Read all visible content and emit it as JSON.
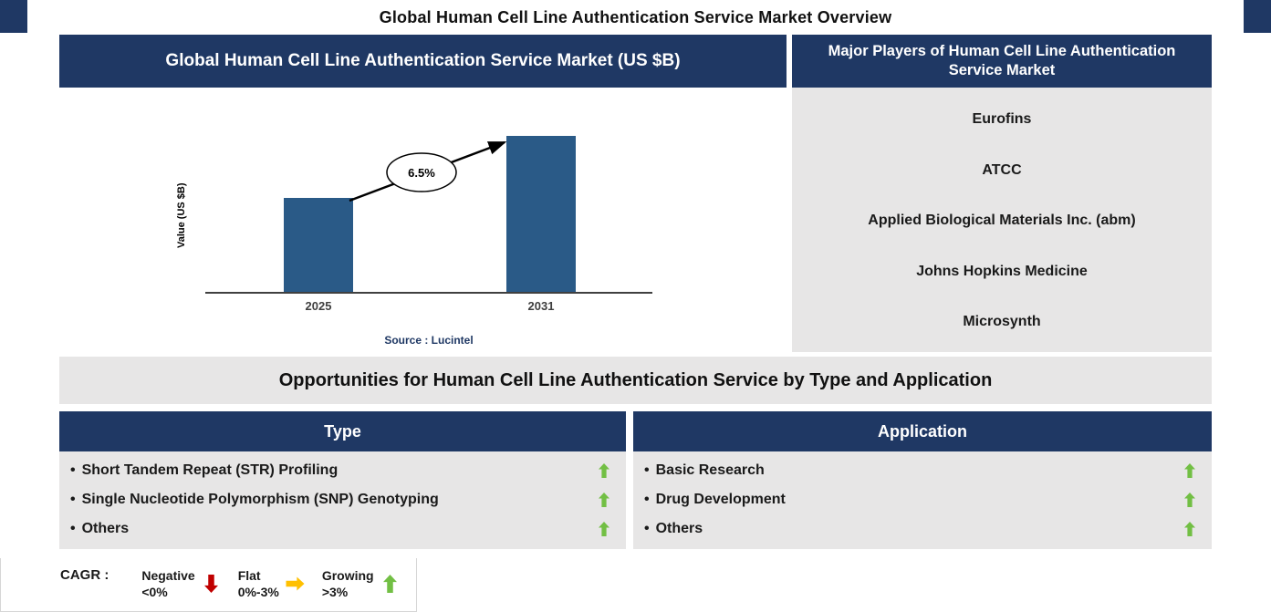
{
  "page_title": "Global Human Cell Line Authentication Service Market Overview",
  "colors": {
    "navy": "#1f3864",
    "bar": "#2a5a87",
    "panel_gray": "#e7e6e6",
    "arrow_green": "#72bf44",
    "arrow_red": "#c00000",
    "arrow_yellow": "#ffc000",
    "text_dark": "#1a1a1a"
  },
  "market_panel": {
    "title": "Global Human Cell Line Authentication Service Market (US $B)",
    "source": "Source : Lucintel"
  },
  "chart_data": {
    "type": "bar",
    "categories": [
      "2025",
      "2031"
    ],
    "values": [
      0.6,
      1.0
    ],
    "values_note": "relative bar heights; y-axis has no numeric tick labels",
    "title": "Global Human Cell Line Authentication Service Market (US $B)",
    "xlabel": "",
    "ylabel": "Value (US $B)",
    "annotation_cagr": "6.5%",
    "bar_color": "#2a5a87",
    "grid": false,
    "legend": false
  },
  "major_players": {
    "title": "Major Players of Human Cell Line Authentication Service Market",
    "items": [
      "Eurofins",
      "ATCC",
      "Applied Biological Materials Inc. (abm)",
      "Johns Hopkins Medicine",
      "Microsynth"
    ]
  },
  "opportunities": {
    "title": "Opportunities for Human Cell Line Authentication Service by Type and Application",
    "bullet": "•",
    "type": {
      "header": "Type",
      "items": [
        {
          "label": "Short Tandem Repeat (STR) Profiling",
          "trend": "growing"
        },
        {
          "label": "Single Nucleotide Polymorphism (SNP) Genotyping",
          "trend": "growing"
        },
        {
          "label": "Others",
          "trend": "growing"
        }
      ]
    },
    "application": {
      "header": "Application",
      "items": [
        {
          "label": "Basic Research",
          "trend": "growing"
        },
        {
          "label": "Drug Development",
          "trend": "growing"
        },
        {
          "label": "Others",
          "trend": "growing"
        }
      ]
    }
  },
  "cagr_legend": {
    "label": "CAGR :",
    "entries": [
      {
        "name": "Negative",
        "range": "<0%",
        "direction": "down",
        "color": "#c00000"
      },
      {
        "name": "Flat",
        "range": "0%-3%",
        "direction": "right",
        "color": "#ffc000"
      },
      {
        "name": "Growing",
        "range": ">3%",
        "direction": "up",
        "color": "#72bf44"
      }
    ]
  }
}
